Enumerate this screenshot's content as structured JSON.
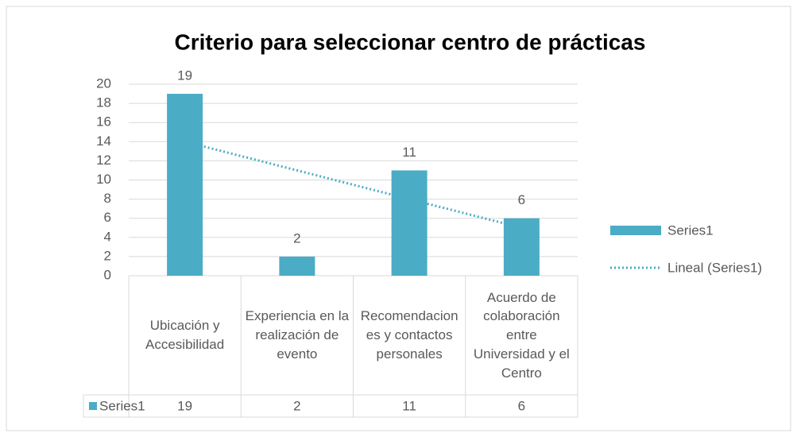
{
  "chart_data": {
    "type": "bar",
    "title": "Criterio para seleccionar centro de prácticas",
    "categories": [
      "Ubicación y Accesibilidad",
      "Experiencia en la realización de evento",
      "Recomendaciones y contactos personales",
      "Acuerdo de colaboración entre Universidad y el Centro"
    ],
    "series": [
      {
        "name": "Series1",
        "color": "#4bacc6",
        "values": [
          19,
          2,
          11,
          6
        ]
      }
    ],
    "trendline": {
      "name": "Lineal (Series1)",
      "color": "#4bacc6",
      "style": "dotted"
    },
    "ylim": [
      0,
      20
    ],
    "yticks": [
      0,
      2,
      4,
      6,
      8,
      10,
      12,
      14,
      16,
      18,
      20
    ],
    "grid": true,
    "legend": "right",
    "data_table": true
  }
}
